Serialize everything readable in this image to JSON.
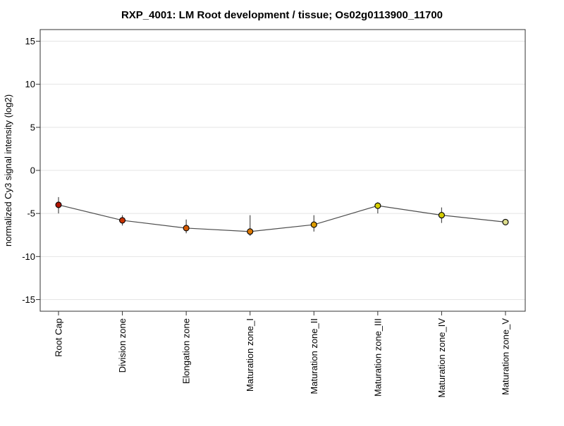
{
  "chart_data": {
    "type": "line",
    "title": "RXP_4001: LM Root development / tissue; Os02g0113900_11700",
    "ylabel": "normalized Cy3 signal intensity (log2)",
    "xlabel": "",
    "categories": [
      "Root Cap",
      "Division zone",
      "Elongation zone",
      "Maturation zone_I",
      "Maturation zone_II",
      "Maturation zone_III",
      "Maturation zone_IV",
      "Maturation zone_V"
    ],
    "series": [
      {
        "name": "normalized Cy3 signal intensity (log2)",
        "values": [
          -4.0,
          -5.8,
          -6.7,
          -7.1,
          -6.3,
          -4.1,
          -5.2,
          -6.0
        ],
        "error_upper": [
          -3.1,
          -5.2,
          -5.7,
          -5.2,
          -5.2,
          -3.7,
          -4.3,
          -5.7
        ],
        "error_lower": [
          -5.0,
          -6.4,
          -7.3,
          -7.6,
          -7.1,
          -5.0,
          -6.1,
          -6.3
        ],
        "point_colors": [
          "#b01400",
          "#c83200",
          "#d45a00",
          "#dd7800",
          "#dd9c00",
          "#d8d000",
          "#d4cc00",
          "#dcdc8c"
        ]
      }
    ],
    "yticks": [
      15,
      10,
      5,
      0,
      -5,
      -10,
      -15
    ],
    "ylim": [
      -16.35,
      16.35
    ],
    "grid": true,
    "legend": "none",
    "colors": {
      "grid": "#e4e4e4",
      "frame": "#333333",
      "line": "#4d4d4d",
      "error_bar": "#4d4d4d",
      "point_stroke": "#000000",
      "background": "#ffffff",
      "text": "#000000"
    }
  }
}
